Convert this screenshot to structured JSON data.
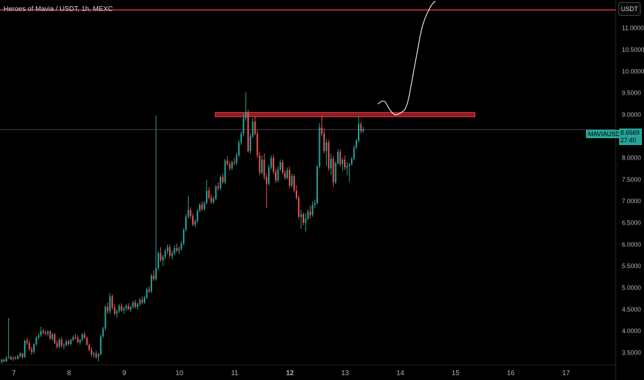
{
  "header": {
    "title": "Heroes of Mavia / USDT, 1h, MEXC",
    "currency_label": "USDT"
  },
  "price_tag": {
    "symbol": "MAVIAUSDT",
    "price": "8.6569",
    "countdown": "27:40"
  },
  "colors": {
    "background": "#000000",
    "up": "#26a69a",
    "down": "#ef5350",
    "zone_fill": "#8b1a25",
    "zone_border": "#e03a45",
    "top_line": "#e03a45",
    "drawing": "#ffffff",
    "axis_text": "#b2b5be"
  },
  "chart_data": {
    "type": "candlestick",
    "title": "Heroes of Mavia / USDT, 1h, MEXC",
    "y_tick_labels": [
      "11.0000",
      "10.5000",
      "10.0000",
      "9.5000",
      "9.0000",
      "8.5000",
      "8.0000",
      "7.5000",
      "7.0000",
      "6.5000",
      "6.0000",
      "5.5000",
      "5.0000",
      "4.5000",
      "4.0000",
      "3.5000"
    ],
    "y_ticks": [
      11.0,
      10.5,
      10.0,
      9.5,
      9.0,
      8.5,
      8.0,
      7.5,
      7.0,
      6.5,
      6.0,
      5.5,
      5.0,
      4.5,
      4.0,
      3.5
    ],
    "x_tick_labels": [
      "7",
      "8",
      "9",
      "10",
      "11",
      "12",
      "13",
      "14",
      "15",
      "16",
      "17"
    ],
    "x_ticks": [
      7,
      8,
      9,
      10,
      11,
      12,
      13,
      14,
      15,
      16,
      17
    ],
    "x_bold": [
      "12"
    ],
    "ylim": [
      3.22,
      11.65
    ],
    "xlim": [
      6.75,
      17.9
    ],
    "last_price": 8.6569,
    "grid": false,
    "resistance_zone": {
      "x_start": 10.65,
      "x_end": 15.35,
      "y_low": 8.97,
      "y_high": 9.05
    },
    "top_line_price": 11.42,
    "projection_path": [
      [
        13.6,
        9.25
      ],
      [
        13.7,
        9.38
      ],
      [
        13.8,
        9.12
      ],
      [
        13.9,
        8.98
      ],
      [
        14.0,
        9.03
      ],
      [
        14.12,
        9.15
      ],
      [
        14.22,
        9.85
      ],
      [
        14.32,
        10.55
      ],
      [
        14.4,
        11.1
      ],
      [
        14.55,
        11.52
      ],
      [
        14.63,
        11.62
      ]
    ],
    "candles_open_time": 6.74,
    "candle_step_days": 0.0417,
    "candles": [
      [
        3.3,
        3.32,
        3.22,
        3.28
      ],
      [
        3.28,
        3.36,
        3.25,
        3.34
      ],
      [
        3.34,
        3.36,
        3.28,
        3.3
      ],
      [
        3.3,
        3.42,
        3.28,
        3.38
      ],
      [
        3.38,
        4.3,
        3.36,
        3.4
      ],
      [
        3.4,
        3.44,
        3.33,
        3.35
      ],
      [
        3.35,
        3.42,
        3.31,
        3.38
      ],
      [
        3.38,
        3.42,
        3.34,
        3.36
      ],
      [
        3.36,
        3.45,
        3.34,
        3.42
      ],
      [
        3.42,
        3.52,
        3.38,
        3.48
      ],
      [
        3.48,
        3.5,
        3.36,
        3.4
      ],
      [
        3.4,
        3.8,
        3.38,
        3.78
      ],
      [
        3.78,
        3.84,
        3.68,
        3.72
      ],
      [
        3.72,
        3.78,
        3.55,
        3.58
      ],
      [
        3.58,
        3.64,
        3.45,
        3.52
      ],
      [
        3.52,
        3.72,
        3.48,
        3.7
      ],
      [
        3.7,
        3.88,
        3.66,
        3.85
      ],
      [
        3.85,
        3.94,
        3.8,
        3.9
      ],
      [
        3.9,
        4.1,
        3.86,
        4.0
      ],
      [
        4.0,
        4.05,
        3.92,
        3.96
      ],
      [
        3.96,
        4.02,
        3.9,
        3.94
      ],
      [
        3.94,
        4.02,
        3.88,
        3.99
      ],
      [
        3.99,
        4.01,
        3.8,
        3.82
      ],
      [
        3.82,
        3.96,
        3.78,
        3.92
      ],
      [
        3.92,
        3.96,
        3.7,
        3.72
      ],
      [
        3.72,
        3.78,
        3.6,
        3.64
      ],
      [
        3.64,
        3.84,
        3.6,
        3.8
      ],
      [
        3.8,
        3.86,
        3.62,
        3.66
      ],
      [
        3.66,
        3.72,
        3.58,
        3.68
      ],
      [
        3.68,
        3.8,
        3.64,
        3.76
      ],
      [
        3.76,
        3.8,
        3.66,
        3.7
      ],
      [
        3.7,
        3.82,
        3.68,
        3.8
      ],
      [
        3.8,
        3.9,
        3.76,
        3.86
      ],
      [
        3.86,
        3.94,
        3.8,
        3.84
      ],
      [
        3.84,
        3.9,
        3.72,
        3.74
      ],
      [
        3.74,
        3.82,
        3.68,
        3.8
      ],
      [
        3.8,
        3.96,
        3.76,
        3.92
      ],
      [
        3.92,
        3.98,
        3.82,
        3.84
      ],
      [
        3.84,
        3.88,
        3.66,
        3.68
      ],
      [
        3.68,
        3.72,
        3.54,
        3.56
      ],
      [
        3.56,
        3.62,
        3.42,
        3.46
      ],
      [
        3.46,
        3.52,
        3.38,
        3.48
      ],
      [
        3.48,
        3.54,
        3.36,
        3.4
      ],
      [
        3.4,
        3.5,
        3.3,
        3.46
      ],
      [
        3.46,
        3.92,
        3.44,
        3.88
      ],
      [
        3.88,
        4.1,
        3.84,
        4.06
      ],
      [
        4.06,
        4.6,
        4.02,
        4.56
      ],
      [
        4.56,
        4.66,
        4.4,
        4.46
      ],
      [
        4.46,
        4.88,
        4.4,
        4.8
      ],
      [
        4.8,
        4.84,
        4.5,
        4.54
      ],
      [
        4.54,
        4.62,
        4.36,
        4.4
      ],
      [
        4.4,
        4.5,
        4.3,
        4.46
      ],
      [
        4.46,
        4.62,
        4.42,
        4.58
      ],
      [
        4.58,
        4.64,
        4.44,
        4.48
      ],
      [
        4.48,
        4.56,
        4.4,
        4.52
      ],
      [
        4.52,
        4.62,
        4.46,
        4.58
      ],
      [
        4.58,
        4.64,
        4.48,
        4.5
      ],
      [
        4.5,
        4.58,
        4.44,
        4.56
      ],
      [
        4.56,
        4.7,
        4.52,
        4.66
      ],
      [
        4.66,
        4.72,
        4.52,
        4.56
      ],
      [
        4.56,
        4.66,
        4.5,
        4.62
      ],
      [
        4.62,
        4.76,
        4.58,
        4.72
      ],
      [
        4.72,
        4.8,
        4.62,
        4.66
      ],
      [
        4.66,
        4.82,
        4.62,
        4.78
      ],
      [
        4.78,
        5.0,
        4.74,
        4.96
      ],
      [
        4.96,
        5.04,
        4.88,
        4.92
      ],
      [
        4.92,
        5.32,
        4.88,
        5.28
      ],
      [
        5.28,
        5.4,
        5.16,
        5.2
      ],
      [
        5.2,
        8.98,
        5.16,
        5.46
      ],
      [
        5.46,
        5.84,
        5.4,
        5.8
      ],
      [
        5.8,
        5.94,
        5.6,
        5.64
      ],
      [
        5.64,
        5.76,
        5.5,
        5.72
      ],
      [
        5.72,
        5.9,
        5.66,
        5.84
      ],
      [
        5.84,
        6.0,
        5.78,
        5.94
      ],
      [
        5.94,
        6.0,
        5.7,
        5.74
      ],
      [
        5.74,
        5.86,
        5.66,
        5.8
      ],
      [
        5.8,
        5.98,
        5.76,
        5.92
      ],
      [
        5.92,
        6.02,
        5.82,
        5.86
      ],
      [
        5.86,
        5.96,
        5.78,
        5.9
      ],
      [
        5.9,
        6.08,
        5.86,
        6.02
      ],
      [
        6.02,
        6.38,
        5.98,
        6.34
      ],
      [
        6.34,
        6.7,
        6.3,
        6.64
      ],
      [
        6.64,
        7.12,
        6.6,
        6.8
      ],
      [
        6.8,
        6.86,
        6.6,
        6.66
      ],
      [
        6.66,
        6.72,
        6.42,
        6.46
      ],
      [
        6.46,
        6.58,
        6.4,
        6.54
      ],
      [
        6.54,
        6.82,
        6.5,
        6.78
      ],
      [
        6.78,
        6.96,
        6.74,
        6.92
      ],
      [
        6.92,
        7.0,
        6.78,
        6.82
      ],
      [
        6.82,
        7.0,
        6.78,
        6.96
      ],
      [
        6.96,
        7.5,
        6.92,
        7.24
      ],
      [
        7.24,
        7.32,
        7.04,
        7.08
      ],
      [
        7.08,
        7.16,
        6.94,
        6.98
      ],
      [
        6.98,
        7.12,
        6.94,
        7.06
      ],
      [
        7.06,
        7.38,
        7.02,
        7.34
      ],
      [
        7.34,
        7.44,
        7.24,
        7.3
      ],
      [
        7.3,
        7.6,
        7.26,
        7.56
      ],
      [
        7.56,
        7.64,
        7.4,
        7.44
      ],
      [
        7.44,
        7.98,
        7.4,
        7.94
      ],
      [
        7.94,
        8.04,
        7.82,
        7.86
      ],
      [
        7.86,
        7.92,
        7.72,
        7.76
      ],
      [
        7.76,
        7.94,
        7.72,
        7.9
      ],
      [
        7.9,
        8.0,
        7.82,
        7.88
      ],
      [
        7.88,
        8.12,
        7.84,
        8.06
      ],
      [
        8.06,
        8.42,
        8.02,
        8.36
      ],
      [
        8.36,
        8.62,
        8.3,
        8.56
      ],
      [
        8.56,
        9.02,
        8.5,
        8.92
      ],
      [
        8.92,
        9.52,
        8.86,
        9.06
      ],
      [
        9.06,
        9.12,
        8.12,
        8.16
      ],
      [
        8.16,
        8.56,
        8.1,
        8.5
      ],
      [
        8.5,
        8.92,
        8.46,
        8.84
      ],
      [
        8.84,
        8.96,
        8.52,
        8.56
      ],
      [
        8.56,
        8.64,
        8.0,
        8.06
      ],
      [
        8.06,
        8.14,
        7.6,
        7.66
      ],
      [
        7.66,
        8.06,
        7.62,
        7.96
      ],
      [
        7.96,
        8.1,
        7.5,
        7.56
      ],
      [
        7.56,
        7.64,
        6.84,
        7.4
      ],
      [
        7.4,
        7.84,
        7.36,
        7.78
      ],
      [
        7.78,
        8.06,
        7.74,
        8.0
      ],
      [
        8.0,
        8.08,
        7.62,
        7.68
      ],
      [
        7.68,
        7.76,
        7.42,
        7.48
      ],
      [
        7.48,
        7.8,
        7.44,
        7.74
      ],
      [
        7.74,
        7.96,
        7.7,
        7.9
      ],
      [
        7.9,
        7.96,
        7.62,
        7.66
      ],
      [
        7.66,
        7.72,
        7.5,
        7.54
      ],
      [
        7.54,
        7.78,
        7.5,
        7.72
      ],
      [
        7.72,
        7.8,
        7.3,
        7.36
      ],
      [
        7.36,
        7.64,
        7.32,
        7.58
      ],
      [
        7.58,
        7.62,
        7.2,
        7.24
      ],
      [
        7.24,
        7.36,
        7.04,
        7.08
      ],
      [
        7.08,
        7.14,
        6.6,
        6.64
      ],
      [
        6.64,
        6.8,
        6.36,
        6.7
      ],
      [
        6.7,
        6.74,
        6.44,
        6.5
      ],
      [
        6.5,
        6.72,
        6.3,
        6.6
      ],
      [
        6.6,
        6.82,
        6.56,
        6.76
      ],
      [
        6.76,
        6.9,
        6.6,
        6.68
      ],
      [
        6.68,
        7.0,
        6.64,
        6.92
      ],
      [
        6.92,
        7.04,
        6.84,
        6.96
      ],
      [
        6.96,
        7.84,
        6.92,
        7.8
      ],
      [
        7.8,
        8.8,
        7.76,
        8.7
      ],
      [
        8.7,
        8.98,
        8.5,
        8.56
      ],
      [
        8.56,
        8.68,
        8.1,
        8.16
      ],
      [
        8.16,
        8.44,
        7.82,
        8.36
      ],
      [
        8.36,
        8.42,
        7.7,
        7.76
      ],
      [
        7.76,
        8.1,
        7.6,
        7.98
      ],
      [
        7.98,
        8.04,
        7.34,
        7.44
      ],
      [
        7.44,
        7.92,
        7.4,
        7.88
      ],
      [
        7.88,
        8.2,
        7.84,
        8.14
      ],
      [
        8.14,
        8.2,
        7.8,
        7.86
      ],
      [
        7.86,
        8.0,
        7.7,
        7.96
      ],
      [
        7.96,
        8.06,
        7.72,
        7.78
      ],
      [
        7.78,
        7.9,
        7.6,
        7.82
      ],
      [
        7.82,
        7.88,
        7.44,
        7.86
      ],
      [
        7.86,
        8.02,
        7.82,
        7.98
      ],
      [
        7.98,
        8.3,
        7.94,
        8.24
      ],
      [
        8.24,
        8.44,
        8.2,
        8.4
      ],
      [
        8.4,
        8.96,
        8.36,
        8.78
      ],
      [
        8.78,
        8.84,
        8.56,
        8.62
      ],
      [
        8.62,
        8.72,
        8.58,
        8.66
      ]
    ]
  }
}
